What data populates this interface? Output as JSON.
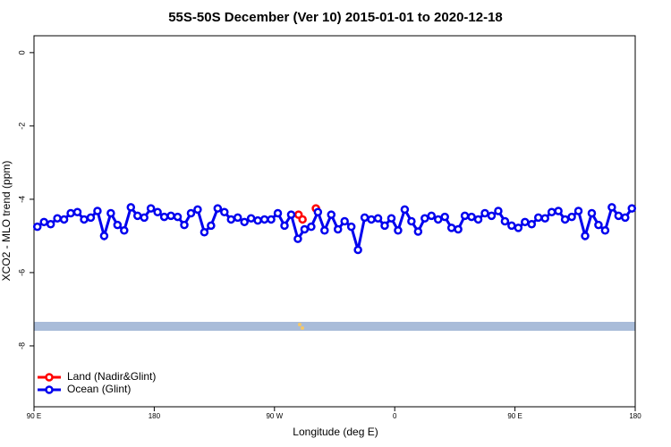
{
  "chart_data": {
    "type": "line",
    "title": "55S-50S December (Ver 10)   2015-01-01 to 2020-12-18",
    "xlabel": "Longitude (deg E)",
    "ylabel": "XCO2 - MLO trend (ppm)",
    "xlim": [
      90,
      540
    ],
    "xticks": [
      {
        "value": 90,
        "label": "90 E"
      },
      {
        "value": 180,
        "label": "180"
      },
      {
        "value": 270,
        "label": "90 W"
      },
      {
        "value": 360,
        "label": "0"
      },
      {
        "value": 450,
        "label": "90 E"
      },
      {
        "value": 540,
        "label": "180"
      }
    ],
    "ylim": [
      -9.66,
      0.46
    ],
    "yticks": [
      0,
      -2,
      -4,
      -6,
      -8
    ],
    "legend": "bottomleft",
    "series": [
      {
        "name": "Land (Nadir&Glint)",
        "color": "#ff0000",
        "x": [
          288,
          291,
          297,
          301
        ],
        "values": [
          -4.42,
          -4.55,
          null,
          -4.25
        ]
      },
      {
        "name": "Ocean (Glint)",
        "color": "#0000ee",
        "x": [
          92.5,
          97.5,
          102.5,
          107.5,
          112.5,
          117.5,
          122.5,
          127.5,
          132.5,
          137.5,
          142.5,
          147.5,
          152.5,
          157.5,
          162.5,
          167.5,
          172.5,
          177.5,
          182.5,
          187.5,
          192.5,
          197.5,
          202.5,
          207.5,
          212.5,
          217.5,
          222.5,
          227.5,
          232.5,
          237.5,
          242.5,
          247.5,
          252.5,
          257.5,
          262.5,
          267.5,
          272.5,
          277.5,
          282.5,
          287.5,
          292.5,
          297.5,
          302.5,
          307.5,
          312.5,
          317.5,
          322.5,
          327.5,
          332.5,
          337.5,
          342.5,
          347.5,
          352.5,
          357.5,
          362.5,
          367.5,
          372.5,
          377.5,
          382.5,
          387.5,
          392.5,
          397.5,
          402.5,
          407.5,
          412.5,
          417.5,
          422.5,
          427.5,
          432.5,
          437.5,
          442.5,
          447.5,
          452.5,
          457.5,
          462.5,
          467.5,
          472.5,
          477.5,
          482.5,
          487.5,
          492.5,
          497.5,
          502.5,
          507.5,
          512.5,
          517.5,
          522.5,
          527.5,
          532.5,
          537.5
        ],
        "values": [
          -4.75,
          -4.62,
          -4.68,
          -4.52,
          -4.55,
          -4.38,
          -4.35,
          -4.55,
          -4.5,
          -4.32,
          -5.0,
          -4.38,
          -4.7,
          -4.85,
          -4.22,
          -4.45,
          -4.5,
          -4.25,
          -4.35,
          -4.48,
          -4.45,
          -4.48,
          -4.7,
          -4.38,
          -4.28,
          -4.9,
          -4.72,
          -4.25,
          -4.35,
          -4.55,
          -4.5,
          -4.62,
          -4.52,
          -4.58,
          -4.55,
          -4.55,
          -4.38,
          -4.72,
          -4.42,
          -5.08,
          -4.82,
          -4.75,
          -4.35,
          -4.85,
          -4.42,
          -4.82,
          -4.6,
          -4.75,
          -5.38,
          -4.5,
          -4.55,
          -4.52,
          -4.72,
          -4.52,
          -4.85,
          -4.28,
          -4.6,
          -4.88,
          -4.52,
          -4.45,
          -4.55,
          -4.48,
          -4.78,
          -4.82,
          -4.45,
          -4.48,
          -4.55,
          -4.38,
          -4.45,
          -4.32,
          -4.6,
          -4.72,
          -4.78,
          -4.62,
          -4.68,
          -4.5,
          -4.52,
          -4.35,
          -4.32,
          -4.55,
          -4.48,
          -4.32,
          -5.0,
          -4.38,
          -4.7,
          -4.85,
          -4.22,
          -4.45,
          -4.5,
          -4.25
        ]
      }
    ]
  }
}
